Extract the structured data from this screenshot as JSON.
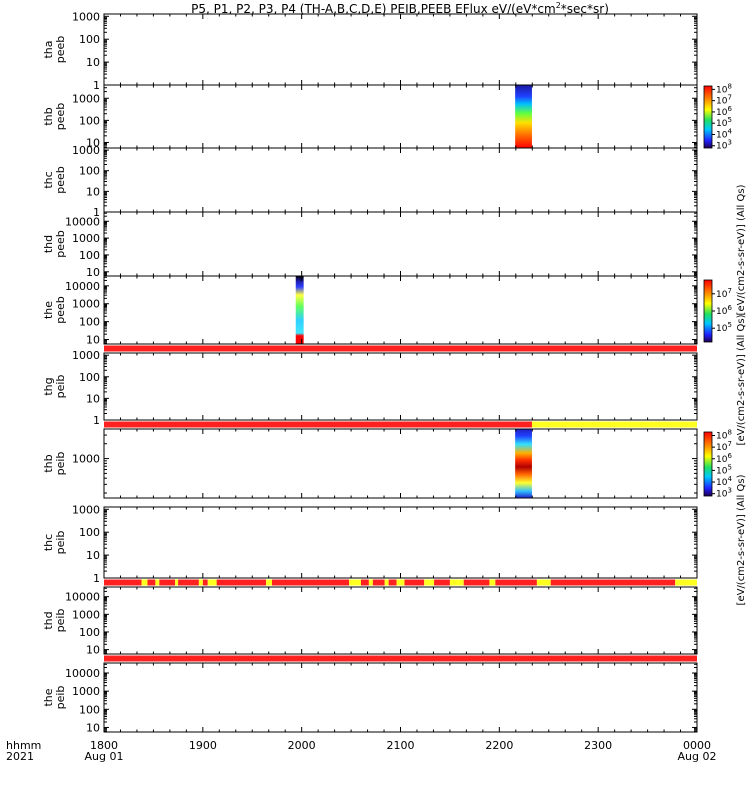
{
  "chart_data": {
    "type": "heatmap",
    "title": "P5, P1, P2, P3, P4 (TH-A,B,C,D,E) PEIB,PEEB EFlux eV/(eV*cm",
    "title_sup": "2",
    "title_tail": "*sec*sr)",
    "x": {
      "row_label": "hhmm",
      "year_label": "2021",
      "range_hours": [
        18,
        24
      ],
      "ticks": [
        {
          "label": "1800",
          "date": "Aug 01",
          "hour": 18
        },
        {
          "label": "1900",
          "hour": 19
        },
        {
          "label": "2000",
          "hour": 20
        },
        {
          "label": "2100",
          "hour": 21
        },
        {
          "label": "2200",
          "hour": 22
        },
        {
          "label": "2300",
          "hour": 23
        },
        {
          "label": "0000",
          "date": "Aug 02",
          "hour": 24
        }
      ]
    },
    "panels": [
      {
        "probe": "tha",
        "instrument": "peeb",
        "ylim_log": [
          0,
          3.1
        ],
        "yticks": [
          {
            "label": "1",
            "exp": 0
          },
          {
            "label": "10",
            "exp": 1
          },
          {
            "label": "100",
            "exp": 2
          },
          {
            "label": "1000",
            "exp": 3
          }
        ],
        "patches": [],
        "bar": []
      },
      {
        "probe": "thb",
        "instrument": "peeb",
        "ylim_log": [
          0.75,
          3.6
        ],
        "yticks": [
          {
            "label": "10",
            "exp": 1
          },
          {
            "label": "100",
            "exp": 2
          },
          {
            "label": "1000",
            "exp": 3
          }
        ],
        "patches": [
          {
            "t0": 22.16,
            "t1": 22.33,
            "cmap": "eflux_b"
          }
        ],
        "bar": []
      },
      {
        "probe": "thc",
        "instrument": "peeb",
        "ylim_log": [
          0,
          3.1
        ],
        "yticks": [
          {
            "label": "1",
            "exp": 0
          },
          {
            "label": "10",
            "exp": 1
          },
          {
            "label": "100",
            "exp": 2
          },
          {
            "label": "1000",
            "exp": 3
          }
        ],
        "patches": [],
        "bar": []
      },
      {
        "probe": "thd",
        "instrument": "peeb",
        "ylim_log": [
          0.75,
          4.55
        ],
        "yticks": [
          {
            "label": "10",
            "exp": 1
          },
          {
            "label": "100",
            "exp": 2
          },
          {
            "label": "1000",
            "exp": 3
          },
          {
            "label": "10000",
            "exp": 4
          }
        ],
        "patches": [],
        "bar": []
      },
      {
        "probe": "the",
        "instrument": "peeb",
        "ylim_log": [
          0.75,
          4.55
        ],
        "yticks": [
          {
            "label": "10",
            "exp": 1
          },
          {
            "label": "100",
            "exp": 2
          },
          {
            "label": "1000",
            "exp": 3
          },
          {
            "label": "10000",
            "exp": 4
          }
        ],
        "patches": [
          {
            "t0": 19.94,
            "t1": 20.02,
            "cmap": "eflux_e"
          }
        ],
        "bar": []
      },
      {
        "probe": "thg",
        "instrument": "peib",
        "ylim_log": [
          0,
          3.1
        ],
        "yticks": [
          {
            "label": "1",
            "exp": 0
          },
          {
            "label": "10",
            "exp": 1
          },
          {
            "label": "100",
            "exp": 2
          },
          {
            "label": "1000",
            "exp": 3
          }
        ],
        "patches": [],
        "bar": [
          {
            "t0": 18.0,
            "t1": 24.0,
            "color": "#ff2020"
          }
        ]
      },
      {
        "probe": "thb",
        "instrument": "peib",
        "ylim_log": [
          2.2,
          3.6
        ],
        "yticks": [
          {
            "label": "1000",
            "exp": 3
          }
        ],
        "patches": [
          {
            "t0": 22.16,
            "t1": 22.33,
            "cmap": "eflux_ib"
          }
        ],
        "bar": [
          {
            "t0": 18.0,
            "t1": 22.33,
            "color": "#ff2020"
          },
          {
            "t0": 22.33,
            "t1": 24.0,
            "color": "#ffff20"
          }
        ]
      },
      {
        "probe": "thc",
        "instrument": "peib",
        "ylim_log": [
          0,
          3.1
        ],
        "yticks": [
          {
            "label": "1",
            "exp": 0
          },
          {
            "label": "10",
            "exp": 1
          },
          {
            "label": "100",
            "exp": 2
          },
          {
            "label": "1000",
            "exp": 3
          }
        ],
        "patches": [],
        "bar": []
      },
      {
        "probe": "thd",
        "instrument": "peib",
        "ylim_log": [
          0.75,
          4.55
        ],
        "yticks": [
          {
            "label": "10",
            "exp": 1
          },
          {
            "label": "100",
            "exp": 2
          },
          {
            "label": "1000",
            "exp": 3
          },
          {
            "label": "10000",
            "exp": 4
          }
        ],
        "patches": [],
        "bar": [
          {
            "t0": 18.0,
            "t1": 18.38,
            "color": "#ff2020"
          },
          {
            "t0": 18.38,
            "t1": 18.44,
            "color": "#ffff20"
          },
          {
            "t0": 18.44,
            "t1": 18.52,
            "color": "#ff2020"
          },
          {
            "t0": 18.52,
            "t1": 18.56,
            "color": "#ffff20"
          },
          {
            "t0": 18.56,
            "t1": 18.72,
            "color": "#ff2020"
          },
          {
            "t0": 18.72,
            "t1": 18.75,
            "color": "#ffff20"
          },
          {
            "t0": 18.75,
            "t1": 18.96,
            "color": "#ff2020"
          },
          {
            "t0": 18.96,
            "t1": 19.0,
            "color": "#ffff20"
          },
          {
            "t0": 19.0,
            "t1": 19.05,
            "color": "#ff2020"
          },
          {
            "t0": 19.05,
            "t1": 19.14,
            "color": "#ffff20"
          },
          {
            "t0": 19.14,
            "t1": 19.64,
            "color": "#ff2020"
          },
          {
            "t0": 19.64,
            "t1": 19.7,
            "color": "#ffff20"
          },
          {
            "t0": 19.7,
            "t1": 20.48,
            "color": "#ff2020"
          },
          {
            "t0": 20.48,
            "t1": 20.6,
            "color": "#ffff20"
          },
          {
            "t0": 20.6,
            "t1": 20.68,
            "color": "#ff2020"
          },
          {
            "t0": 20.68,
            "t1": 20.72,
            "color": "#ffff20"
          },
          {
            "t0": 20.72,
            "t1": 20.84,
            "color": "#ff2020"
          },
          {
            "t0": 20.84,
            "t1": 20.88,
            "color": "#ffff20"
          },
          {
            "t0": 20.88,
            "t1": 20.96,
            "color": "#ff2020"
          },
          {
            "t0": 20.96,
            "t1": 21.04,
            "color": "#ffff20"
          },
          {
            "t0": 21.04,
            "t1": 21.24,
            "color": "#ff2020"
          },
          {
            "t0": 21.24,
            "t1": 21.34,
            "color": "#ffff20"
          },
          {
            "t0": 21.34,
            "t1": 21.5,
            "color": "#ff2020"
          },
          {
            "t0": 21.5,
            "t1": 21.64,
            "color": "#ffff20"
          },
          {
            "t0": 21.64,
            "t1": 21.9,
            "color": "#ff2020"
          },
          {
            "t0": 21.9,
            "t1": 21.96,
            "color": "#ffff20"
          },
          {
            "t0": 21.96,
            "t1": 22.38,
            "color": "#ff2020"
          },
          {
            "t0": 22.38,
            "t1": 22.52,
            "color": "#ffff20"
          },
          {
            "t0": 22.52,
            "t1": 23.78,
            "color": "#ff2020"
          },
          {
            "t0": 23.78,
            "t1": 24.0,
            "color": "#ffff20"
          }
        ]
      },
      {
        "probe": "the",
        "instrument": "peib",
        "ylim_log": [
          0.75,
          4.55
        ],
        "yticks": [
          {
            "label": "10",
            "exp": 1
          },
          {
            "label": "100",
            "exp": 2
          },
          {
            "label": "1000",
            "exp": 3
          },
          {
            "label": "10000",
            "exp": 4
          }
        ],
        "patches": [],
        "bar": [
          {
            "t0": 18.0,
            "t1": 24.0,
            "color": "#ff2020"
          }
        ]
      }
    ],
    "colorbars": [
      {
        "label": "[eV/(cm2-s-sr-eV)] (All Qs)",
        "exps": [
          3,
          4,
          5,
          6,
          7,
          8
        ],
        "log_range": [
          2.8,
          8.3
        ]
      },
      {
        "label": "[eV/(cm2-s-sr-eV)] (All Qs)",
        "exps": [
          5,
          6,
          7
        ],
        "log_range": [
          4.2,
          7.8
        ]
      },
      {
        "label": "[eV/(cm2-s-sr-eV)] (All Qs)",
        "exps": [
          3,
          4,
          5,
          6,
          7,
          8
        ],
        "log_range": [
          2.8,
          8.3
        ]
      }
    ]
  }
}
